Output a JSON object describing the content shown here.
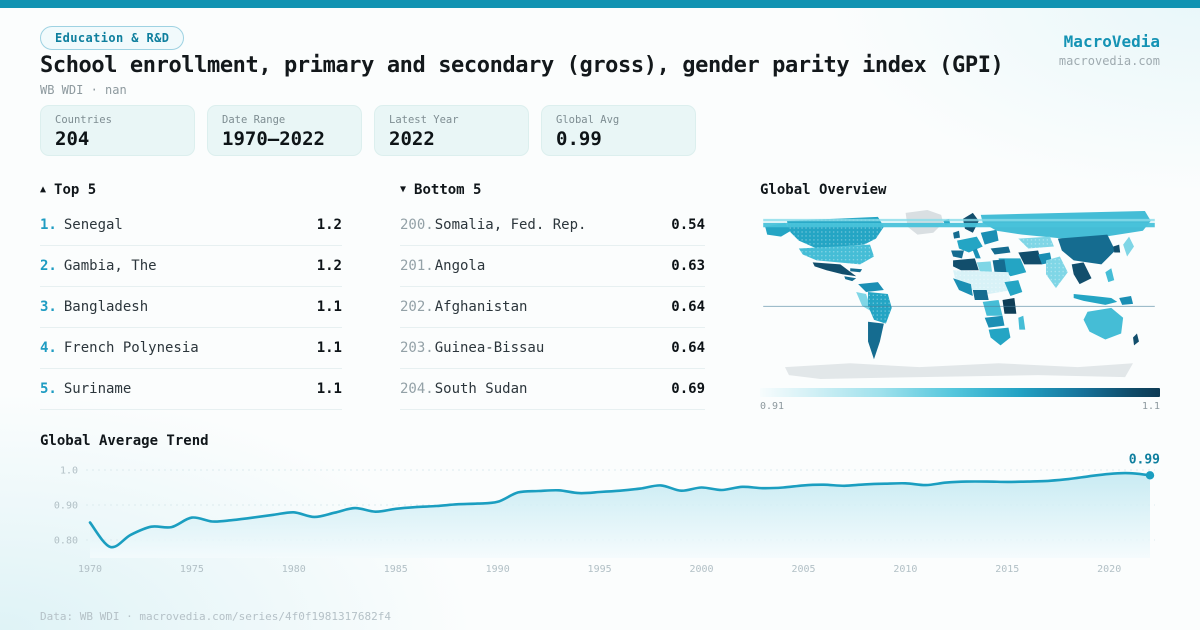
{
  "page": {
    "accent": "#1193b2"
  },
  "header": {
    "badge": "Education & R&D",
    "title": "School enrollment, primary and secondary (gross), gender parity index (GPI)",
    "subtitle": "WB WDI · nan",
    "brand": {
      "name": "MacroVedia",
      "domain": "macrovedia.com"
    }
  },
  "stats": [
    {
      "label": "Countries",
      "value": "204"
    },
    {
      "label": "Date Range",
      "value": "1970—2022"
    },
    {
      "label": "Latest Year",
      "value": "2022"
    },
    {
      "label": "Global Avg",
      "value": "0.99"
    }
  ],
  "top5": {
    "icon": "▲",
    "title": "Top 5",
    "items": [
      {
        "rank": "1.",
        "name": "Senegal",
        "value": "1.2"
      },
      {
        "rank": "2.",
        "name": "Gambia, The",
        "value": "1.2"
      },
      {
        "rank": "3.",
        "name": "Bangladesh",
        "value": "1.1"
      },
      {
        "rank": "4.",
        "name": "French Polynesia",
        "value": "1.1"
      },
      {
        "rank": "5.",
        "name": "Suriname",
        "value": "1.1"
      }
    ]
  },
  "bottom5": {
    "icon": "▼",
    "title": "Bottom 5",
    "items": [
      {
        "rank": "200.",
        "name": "Somalia, Fed. Rep.",
        "value": "0.54"
      },
      {
        "rank": "201.",
        "name": "Angola",
        "value": "0.63"
      },
      {
        "rank": "202.",
        "name": "Afghanistan",
        "value": "0.64"
      },
      {
        "rank": "203.",
        "name": "Guinea-Bissau",
        "value": "0.64"
      },
      {
        "rank": "204.",
        "name": "South Sudan",
        "value": "0.69"
      }
    ]
  },
  "map": {
    "title": "Global Overview",
    "legend_min": "0.91",
    "legend_max": "1.1"
  },
  "chart_data": {
    "type": "line",
    "title": "Global Average Trend",
    "xlabel": "",
    "ylabel": "",
    "xlim": [
      1970,
      2022
    ],
    "ylim": [
      0.76,
      1.01
    ],
    "x_step": 1,
    "values": [
      0.85,
      0.78,
      0.815,
      0.838,
      0.837,
      0.864,
      0.853,
      0.857,
      0.864,
      0.872,
      0.879,
      0.866,
      0.878,
      0.891,
      0.881,
      0.889,
      0.894,
      0.897,
      0.902,
      0.904,
      0.909,
      0.936,
      0.94,
      0.942,
      0.934,
      0.937,
      0.941,
      0.947,
      0.956,
      0.941,
      0.95,
      0.943,
      0.952,
      0.948,
      0.95,
      0.956,
      0.958,
      0.955,
      0.959,
      0.961,
      0.962,
      0.957,
      0.964,
      0.967,
      0.967,
      0.966,
      0.967,
      0.969,
      0.974,
      0.982,
      0.989,
      0.991,
      0.985
    ],
    "yticks": [
      {
        "v": 1.0,
        "label": "1.0"
      },
      {
        "v": 0.9,
        "label": "0.90"
      },
      {
        "v": 0.8,
        "label": "0.80"
      }
    ],
    "xticks": [
      "1970",
      "1975",
      "1980",
      "1985",
      "1990",
      "1995",
      "2000",
      "2005",
      "2010",
      "2015",
      "2020"
    ],
    "end_label": "0.99",
    "line_color": "#1b9ec0",
    "area_top": "#c0e8f1",
    "area_bottom": "#f4fbfd",
    "grid": "dashed",
    "legend_position": "none"
  },
  "footer": "Data: WB WDI · macrovedia.com/series/4f0f1981317682f4"
}
